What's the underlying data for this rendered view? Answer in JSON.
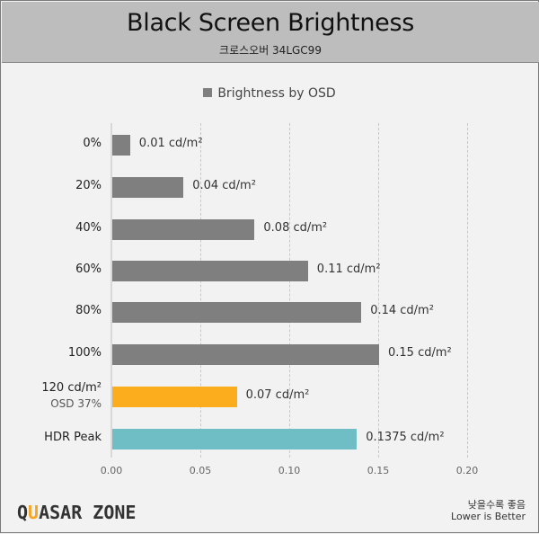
{
  "header": {
    "title": "Black Screen Brightness",
    "subtitle": "크로스오버 34LGC99"
  },
  "legend": {
    "label": "Brightness by OSD",
    "color": "#7f7f7f"
  },
  "footer": {
    "logo_prefix": "Q",
    "logo_accent": "U",
    "logo_rest": "ASAR ZONE",
    "note_kr": "낮을수록 좋음",
    "note_en": "Lower is Better"
  },
  "colors": {
    "default_bar": "#7f7f7f",
    "highlight_bar": "#fbad1d",
    "hdr_bar": "#6fbec5",
    "header_bg": "#bdbdbd",
    "background": "#f2f2f2"
  },
  "chart_data": {
    "type": "bar",
    "orientation": "horizontal",
    "title": "Black Screen Brightness",
    "subtitle": "크로스오버 34LGC99",
    "xlabel": "",
    "ylabel": "",
    "xlim": [
      0,
      0.2
    ],
    "x_ticks": [
      "0.00",
      "0.05",
      "0.10",
      "0.15",
      "0.20"
    ],
    "grid": "vertical dashed",
    "legend_position": "top",
    "categories": [
      "0%",
      "20%",
      "40%",
      "60%",
      "80%",
      "100%",
      "120 cd/m²",
      "HDR Peak"
    ],
    "category_sublabels": [
      "",
      "",
      "",
      "",
      "",
      "",
      "OSD 37%",
      ""
    ],
    "series": [
      {
        "name": "Brightness by OSD",
        "values": [
          0.01,
          0.04,
          0.08,
          0.11,
          0.14,
          0.15,
          0.07,
          0.1375
        ],
        "labels": [
          "0.01 cd/m²",
          "0.04 cd/m²",
          "0.08 cd/m²",
          "0.11 cd/m²",
          "0.14 cd/m²",
          "0.15 cd/m²",
          "0.07 cd/m²",
          "0.1375 cd/m²"
        ],
        "colors": [
          "#7f7f7f",
          "#7f7f7f",
          "#7f7f7f",
          "#7f7f7f",
          "#7f7f7f",
          "#7f7f7f",
          "#fbad1d",
          "#6fbec5"
        ]
      }
    ],
    "annotations": [
      "낮을수록 좋음",
      "Lower is Better"
    ]
  }
}
